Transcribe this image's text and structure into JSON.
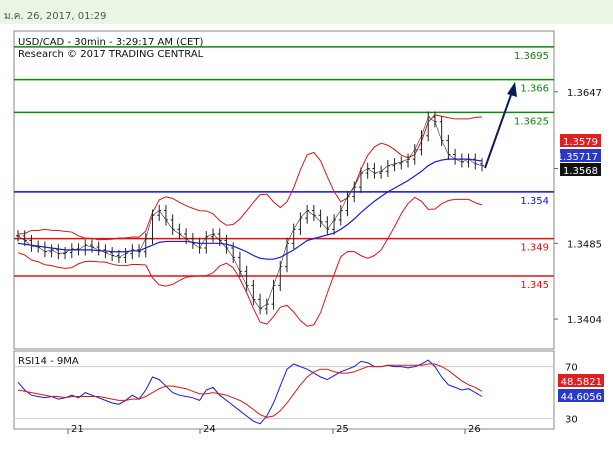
{
  "header": {
    "datetime": "ม.ค. 26, 2017, 01:29"
  },
  "chart_data": {
    "type": "line",
    "title": "USD/CAD - 30min - 3:29:17 AM (CET)",
    "subtitle": "Research © 2017 TRADING CENTRAL",
    "price_ylim": [
      1.3372,
      1.3712
    ],
    "price_ticks": [
      "1.3647",
      "1.3565",
      "1.3485",
      "1.3404"
    ],
    "x_ticks": [
      "21",
      "24",
      "25",
      "26"
    ],
    "levels": [
      {
        "label": "1.3695",
        "value": 1.3695,
        "color": "#0a8a0a"
      },
      {
        "label": "1.366",
        "value": 1.366,
        "color": "#0a8a0a"
      },
      {
        "label": "1.3625",
        "value": 1.3625,
        "color": "#0a8a0a"
      },
      {
        "label": "1.354",
        "value": 1.354,
        "color": "#1010d8"
      },
      {
        "label": "1.349",
        "value": 1.349,
        "color": "#e01010"
      },
      {
        "label": "1.345",
        "value": 1.345,
        "color": "#e01010"
      }
    ],
    "price_badges": [
      {
        "label": "1.3579",
        "value": 1.3579,
        "bg": "#e02020",
        "fg": "#ffffff"
      },
      {
        "label": "1.35717",
        "value": 1.35717,
        "bg": "#2838c8",
        "fg": "#ffffff"
      },
      {
        "label": "1.3568",
        "value": 1.3568,
        "bg": "#111111",
        "fg": "#ffffff"
      }
    ],
    "price_series": [
      1.3493,
      1.3488,
      1.3482,
      1.3481,
      1.3476,
      1.3478,
      1.3474,
      1.3475,
      1.3479,
      1.3478,
      1.3483,
      1.3481,
      1.3478,
      1.3475,
      1.3472,
      1.347,
      1.3474,
      1.3478,
      1.3476,
      1.349,
      1.3515,
      1.352,
      1.351,
      1.35,
      1.3495,
      1.349,
      1.3485,
      1.348,
      1.3492,
      1.3495,
      1.3488,
      1.348,
      1.347,
      1.3455,
      1.344,
      1.3425,
      1.3415,
      1.342,
      1.344,
      1.346,
      1.3485,
      1.35,
      1.3512,
      1.352,
      1.3515,
      1.3508,
      1.35,
      1.351,
      1.352,
      1.3535,
      1.3545,
      1.356,
      1.3565,
      1.356,
      1.3562,
      1.3568,
      1.357,
      1.3572,
      1.3575,
      1.3585,
      1.36,
      1.362,
      1.3615,
      1.3595,
      1.358,
      1.3575,
      1.3572,
      1.3575,
      1.357,
      1.3568
    ],
    "ma_series": [
      1.3485,
      1.3484,
      1.3483,
      1.3482,
      1.3481,
      1.348,
      1.3479,
      1.3478,
      1.3478,
      1.3478,
      1.3478,
      1.3478,
      1.3477,
      1.3477,
      1.3476,
      1.3476,
      1.3476,
      1.3477,
      1.3477,
      1.348,
      1.3483,
      1.3486,
      1.3487,
      1.3487,
      1.3487,
      1.3487,
      1.3486,
      1.3485,
      1.3485,
      1.3485,
      1.3485,
      1.3484,
      1.3482,
      1.3479,
      1.3476,
      1.3472,
      1.3469,
      1.3468,
      1.3468,
      1.347,
      1.3474,
      1.3478,
      1.3483,
      1.3488,
      1.349,
      1.3492,
      1.3494,
      1.3496,
      1.35,
      1.3505,
      1.3511,
      1.3518,
      1.3524,
      1.353,
      1.3535,
      1.354,
      1.3544,
      1.3548,
      1.3552,
      1.3557,
      1.3562,
      1.3568,
      1.3572,
      1.3574,
      1.3575,
      1.3575,
      1.3575,
      1.3575,
      1.3574,
      1.3573
    ],
    "rsi": {
      "label": "RSI14 - 9MA",
      "ylim": [
        22,
        82
      ],
      "ticks": [
        "70",
        "30"
      ],
      "badges": [
        {
          "label": "48.5821",
          "value": 48.58,
          "bg": "#e02020",
          "fg": "#ffffff"
        },
        {
          "label": "44.6056",
          "value": 44.61,
          "bg": "#2838c8",
          "fg": "#ffffff"
        }
      ],
      "rsi_series": [
        58,
        52,
        48,
        47,
        46,
        47,
        45,
        46,
        48,
        46,
        50,
        48,
        46,
        44,
        42,
        41,
        44,
        48,
        45,
        52,
        62,
        60,
        55,
        50,
        48,
        47,
        46,
        44,
        52,
        54,
        48,
        44,
        40,
        36,
        32,
        28,
        26,
        32,
        42,
        55,
        68,
        72,
        70,
        68,
        65,
        62,
        60,
        63,
        66,
        68,
        70,
        74,
        73,
        70,
        70,
        71,
        70,
        70,
        69,
        70,
        72,
        75,
        70,
        62,
        56,
        54,
        52,
        53,
        50,
        47
      ],
      "ma_series": [
        52,
        51,
        50,
        49,
        48,
        47,
        47,
        46,
        47,
        47,
        47,
        47,
        47,
        46,
        45,
        44,
        44,
        45,
        45,
        47,
        50,
        53,
        55,
        55,
        54,
        53,
        51,
        49,
        49,
        50,
        49,
        48,
        46,
        44,
        41,
        37,
        33,
        31,
        32,
        36,
        42,
        49,
        56,
        62,
        66,
        68,
        68,
        66,
        65,
        65,
        66,
        68,
        70,
        70,
        70,
        71,
        71,
        71,
        71,
        71,
        71,
        72,
        72,
        70,
        67,
        63,
        59,
        56,
        54,
        51
      ]
    }
  }
}
